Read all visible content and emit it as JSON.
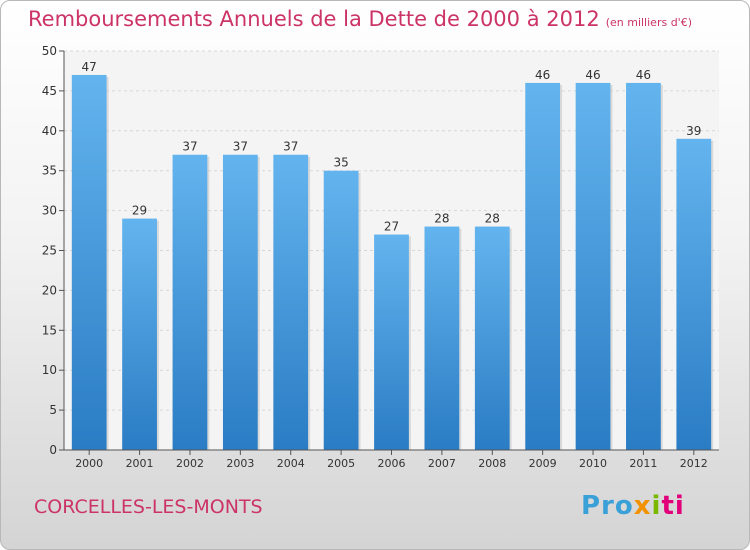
{
  "chart_data": {
    "type": "bar",
    "title": "Remboursements Annuels de la Dette de 2000 à 2012",
    "subtitle": "(en milliers d'€)",
    "categories": [
      "2000",
      "2001",
      "2002",
      "2003",
      "2004",
      "2005",
      "2006",
      "2007",
      "2008",
      "2009",
      "2010",
      "2011",
      "2012"
    ],
    "values": [
      47,
      29,
      37,
      37,
      37,
      35,
      27,
      28,
      28,
      46,
      46,
      46,
      39
    ],
    "ylim": [
      0,
      50
    ],
    "yticks": [
      0,
      5,
      10,
      15,
      20,
      25,
      30,
      35,
      40,
      45,
      50
    ],
    "xlabel": "",
    "ylabel": "",
    "grid": true,
    "bar_color": "#4fa3e3"
  },
  "footer": {
    "city": "CORCELLES-LES-MONTS",
    "logo_parts": [
      "Pro",
      "x",
      "i",
      "ti"
    ]
  },
  "colors": {
    "title": "#cc3366",
    "bar_top": "#63b4ee",
    "bar_bottom": "#2a7cc4"
  }
}
